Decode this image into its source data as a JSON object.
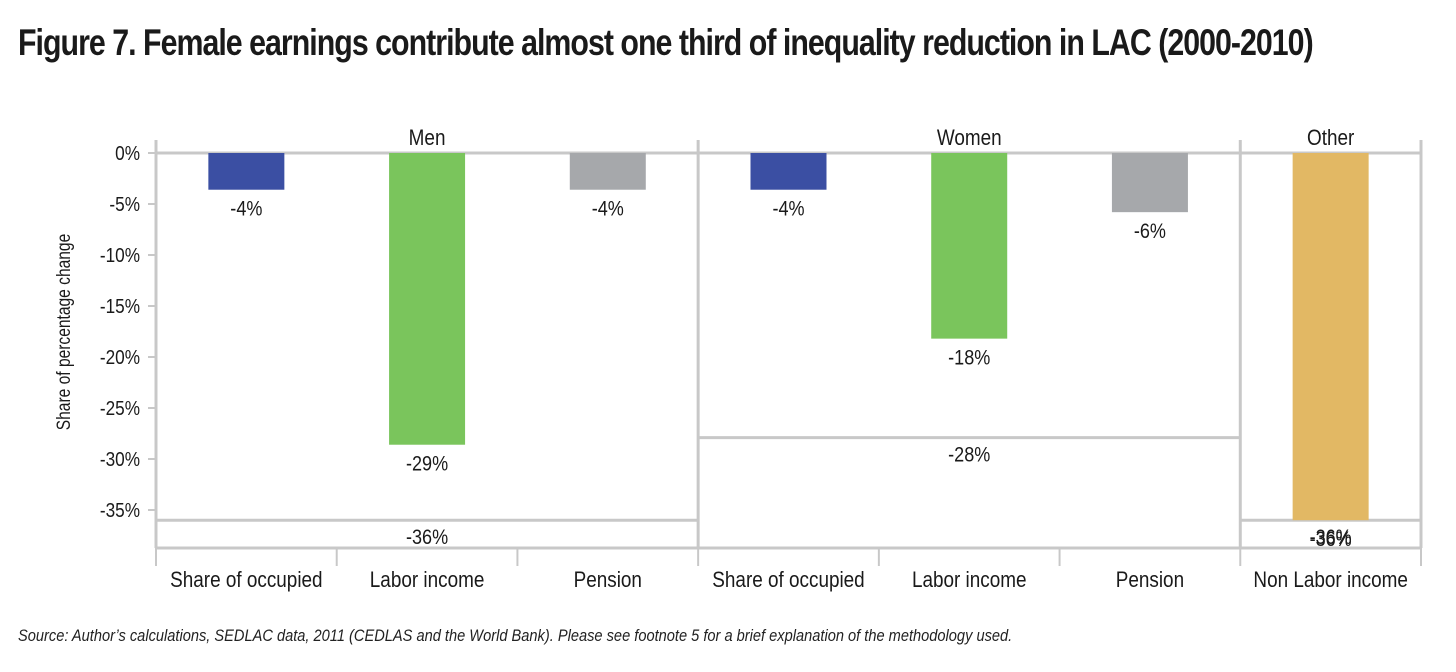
{
  "title": "Figure 7. Female earnings contribute almost one third of inequality reduction in LAC (2000-2010)",
  "source": "Source: Author’s calculations, SEDLAC data, 2011 (CEDLAS and the World Bank). Please see footnote 5 for a brief explanation of the methodology used.",
  "chart_data": {
    "type": "bar",
    "title": "Figure 7. Female earnings contribute almost one third of inequality reduction in LAC (2000-2010)",
    "ylabel": "Share of percentage change",
    "xlabel": "",
    "ylim": [
      -40,
      0
    ],
    "yticks": [
      0,
      -5,
      -10,
      -15,
      -20,
      -25,
      -30,
      -35
    ],
    "ytick_labels": [
      "0%",
      "-5%",
      "-10%",
      "-15%",
      "-20%",
      "-25%",
      "-30%",
      "-35%"
    ],
    "grid": false,
    "groups": [
      {
        "name": "Men",
        "total": -36,
        "total_label": "-36%",
        "bars": [
          {
            "category": "Share of occupied",
            "value": -3.6,
            "label": "-4%",
            "color": "#3b4fa3"
          },
          {
            "category": "Labor income",
            "value": -28.6,
            "label": "-29%",
            "color": "#7ac55c"
          },
          {
            "category": "Pension",
            "value": -3.6,
            "label": "-4%",
            "color": "#a6a8ab"
          }
        ]
      },
      {
        "name": "Women",
        "total": -27.9,
        "total_label": "-28%",
        "bars": [
          {
            "category": "Share of occupied",
            "value": -3.6,
            "label": "-4%",
            "color": "#3b4fa3"
          },
          {
            "category": "Labor income",
            "value": -18.2,
            "label": "-18%",
            "color": "#7ac55c"
          },
          {
            "category": "Pension",
            "value": -5.8,
            "label": "-6%",
            "color": "#a6a8ab"
          }
        ]
      },
      {
        "name": "Other",
        "total": -36,
        "total_label": "-36%",
        "bars": [
          {
            "category": "Non Labor income",
            "value": -36,
            "label": "-36%",
            "color": "#e2b864"
          }
        ]
      }
    ]
  }
}
